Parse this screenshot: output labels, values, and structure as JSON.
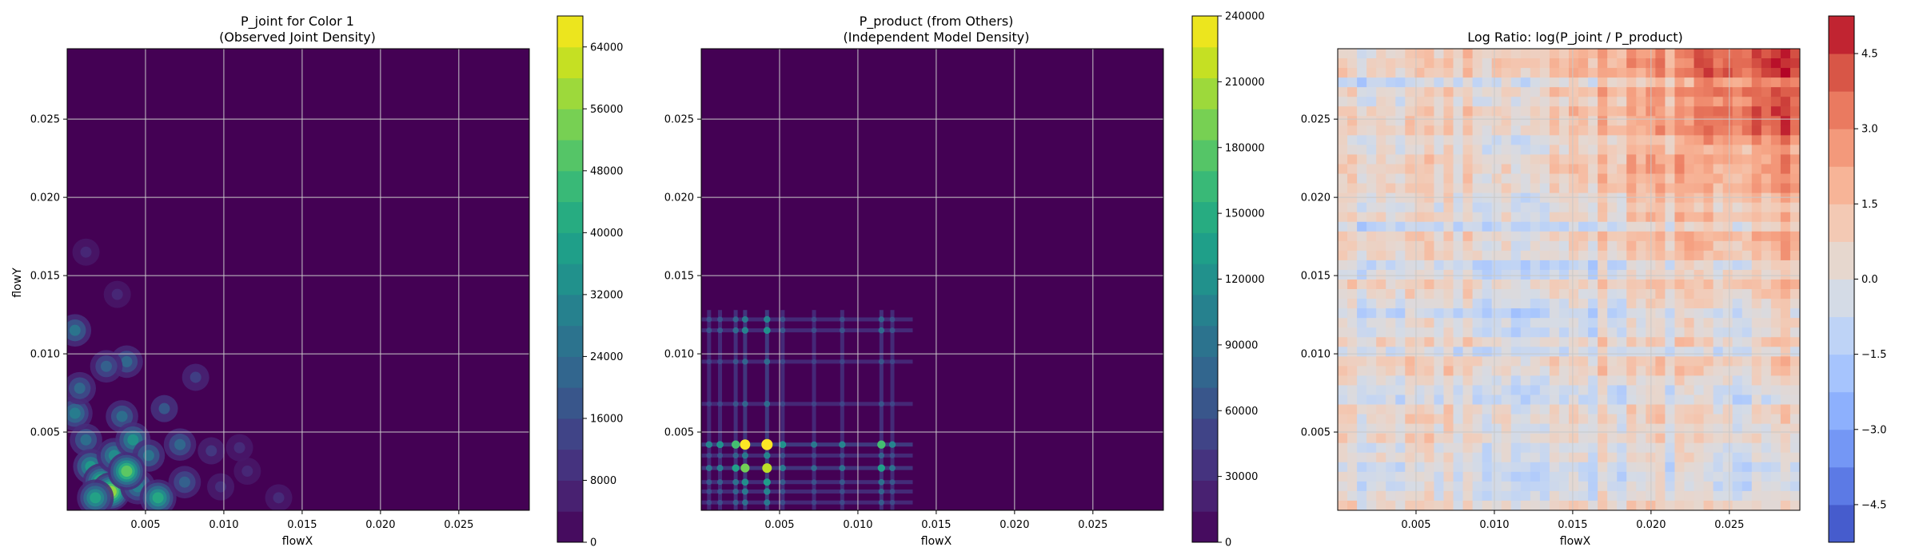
{
  "chart_data": [
    {
      "type": "heatmap",
      "title": "P_joint for Color 1",
      "subtitle": "(Observed Joint Density)",
      "xlabel": "flowX",
      "ylabel": "flowY",
      "xlim": [
        0.0,
        0.0295
      ],
      "ylim": [
        0.0,
        0.0295
      ],
      "xticks": [
        0.005,
        0.01,
        0.015,
        0.02,
        0.025
      ],
      "xtick_labels": [
        "0.005",
        "0.010",
        "0.015",
        "0.020",
        "0.025"
      ],
      "yticks": [
        0.005,
        0.01,
        0.015,
        0.02,
        0.025
      ],
      "ytick_labels": [
        "0.005",
        "0.010",
        "0.015",
        "0.020",
        "0.025"
      ],
      "grid": true,
      "colormap": "viridis",
      "background_color": "#440154",
      "colorbar": {
        "min": 0,
        "max": 68000,
        "ticks": [
          0,
          8000,
          16000,
          24000,
          32000,
          40000,
          48000,
          56000,
          64000
        ],
        "tick_labels": [
          "0",
          "8000",
          "16000",
          "24000",
          "32000",
          "40000",
          "48000",
          "56000",
          "64000"
        ]
      },
      "blobs": [
        {
          "x": 0.0005,
          "y": 0.0115,
          "value": 28000
        },
        {
          "x": 0.0005,
          "y": 0.0062,
          "value": 30000
        },
        {
          "x": 0.0012,
          "y": 0.0045,
          "value": 26000
        },
        {
          "x": 0.0015,
          "y": 0.0028,
          "value": 38000
        },
        {
          "x": 0.0022,
          "y": 0.0018,
          "value": 48000
        },
        {
          "x": 0.0028,
          "y": 0.0012,
          "value": 58000
        },
        {
          "x": 0.003,
          "y": 0.0035,
          "value": 34000
        },
        {
          "x": 0.0035,
          "y": 0.006,
          "value": 26000
        },
        {
          "x": 0.0038,
          "y": 0.0095,
          "value": 24000
        },
        {
          "x": 0.0042,
          "y": 0.0045,
          "value": 36000
        },
        {
          "x": 0.0045,
          "y": 0.0015,
          "value": 30000
        },
        {
          "x": 0.0052,
          "y": 0.0035,
          "value": 28000
        },
        {
          "x": 0.0058,
          "y": 0.0008,
          "value": 42000
        },
        {
          "x": 0.0062,
          "y": 0.0065,
          "value": 20000
        },
        {
          "x": 0.0072,
          "y": 0.0042,
          "value": 24000
        },
        {
          "x": 0.0075,
          "y": 0.0018,
          "value": 22000
        },
        {
          "x": 0.0082,
          "y": 0.0085,
          "value": 14000
        },
        {
          "x": 0.0092,
          "y": 0.0038,
          "value": 12000
        },
        {
          "x": 0.0098,
          "y": 0.0015,
          "value": 10000
        },
        {
          "x": 0.011,
          "y": 0.004,
          "value": 9000
        },
        {
          "x": 0.0115,
          "y": 0.0025,
          "value": 8000
        },
        {
          "x": 0.0135,
          "y": 0.0008,
          "value": 9000
        },
        {
          "x": 0.0012,
          "y": 0.0165,
          "value": 8000
        },
        {
          "x": 0.0032,
          "y": 0.0138,
          "value": 8000
        },
        {
          "x": 0.0025,
          "y": 0.0092,
          "value": 22000
        },
        {
          "x": 0.0008,
          "y": 0.0078,
          "value": 24000
        },
        {
          "x": 0.0018,
          "y": 0.0008,
          "value": 40000
        },
        {
          "x": 0.0038,
          "y": 0.0025,
          "value": 52000
        }
      ]
    },
    {
      "type": "heatmap",
      "title": "P_product (from Others)",
      "subtitle": "(Independent Model Density)",
      "xlabel": "flowX",
      "ylabel": "",
      "xlim": [
        0.0,
        0.0295
      ],
      "ylim": [
        0.0,
        0.0295
      ],
      "xticks": [
        0.005,
        0.01,
        0.015,
        0.02,
        0.025
      ],
      "xtick_labels": [
        "0.005",
        "0.010",
        "0.015",
        "0.020",
        "0.025"
      ],
      "yticks": [
        0.005,
        0.01,
        0.015,
        0.02,
        0.025
      ],
      "ytick_labels": [
        "0.005",
        "0.010",
        "0.015",
        "0.020",
        "0.025"
      ],
      "grid": true,
      "colormap": "viridis",
      "background_color": "#440154",
      "colorbar": {
        "min": 0,
        "max": 240000,
        "ticks": [
          0,
          30000,
          60000,
          90000,
          120000,
          150000,
          180000,
          210000,
          240000
        ],
        "tick_labels": [
          "0",
          "30000",
          "60000",
          "90000",
          "120000",
          "150000",
          "180000",
          "210000",
          "240000"
        ]
      },
      "x_marginal_peaks": [
        {
          "x": 0.0005,
          "w": 0.3
        },
        {
          "x": 0.0012,
          "w": 0.35
        },
        {
          "x": 0.0022,
          "w": 0.55
        },
        {
          "x": 0.0028,
          "w": 0.85
        },
        {
          "x": 0.0042,
          "w": 1.0
        },
        {
          "x": 0.0052,
          "w": 0.35
        },
        {
          "x": 0.0072,
          "w": 0.25
        },
        {
          "x": 0.009,
          "w": 0.3
        },
        {
          "x": 0.0115,
          "w": 0.55
        },
        {
          "x": 0.0122,
          "w": 0.3
        }
      ],
      "y_marginal_peaks": [
        {
          "y": 0.0005,
          "w": 0.25
        },
        {
          "y": 0.0012,
          "w": 0.3
        },
        {
          "y": 0.0018,
          "w": 0.4
        },
        {
          "y": 0.0027,
          "w": 0.75
        },
        {
          "y": 0.0035,
          "w": 0.3
        },
        {
          "y": 0.0042,
          "w": 1.0
        },
        {
          "y": 0.0068,
          "w": 0.2
        },
        {
          "y": 0.0095,
          "w": 0.2
        },
        {
          "y": 0.0115,
          "w": 0.35
        },
        {
          "y": 0.0122,
          "w": 0.3
        }
      ]
    },
    {
      "type": "heatmap",
      "title": "Log Ratio: log(P_joint / P_product)",
      "subtitle": "",
      "xlabel": "flowX",
      "ylabel": "",
      "xlim": [
        0.0,
        0.0295
      ],
      "ylim": [
        0.0,
        0.0295
      ],
      "xticks": [
        0.005,
        0.01,
        0.015,
        0.02,
        0.025
      ],
      "xtick_labels": [
        "0.005",
        "0.010",
        "0.015",
        "0.020",
        "0.025"
      ],
      "yticks": [
        0.005,
        0.01,
        0.015,
        0.02,
        0.025
      ],
      "ytick_labels": [
        "0.005",
        "0.010",
        "0.015",
        "0.020",
        "0.025"
      ],
      "grid": true,
      "colormap": "coolwarm",
      "colorbar": {
        "min": -5.25,
        "max": 5.25,
        "ticks": [
          -4.5,
          -3.0,
          -1.5,
          0.0,
          1.5,
          3.0,
          4.5
        ],
        "tick_labels": [
          "−4.5",
          "−3.0",
          "−1.5",
          "0.0",
          "1.5",
          "3.0",
          "4.5"
        ]
      }
    }
  ]
}
